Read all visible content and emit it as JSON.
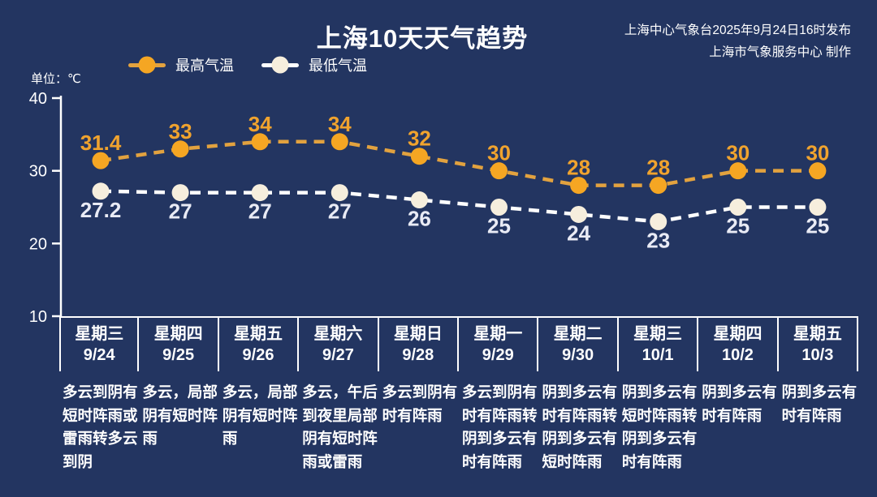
{
  "header": {
    "title": "上海10天天气趋势",
    "source_line1": "上海中心气象台2025年9月24日16时发布",
    "source_line2": "上海市气象服务中心 制作"
  },
  "unit_label": "单位：℃",
  "legend": {
    "high_label": "最高气温",
    "low_label": "最低气温"
  },
  "colors": {
    "background": "#233561",
    "axis": "#ffffff",
    "high_line": "#e2a23f",
    "high_marker": "#f5a623",
    "high_value_label": "#f0a32e",
    "low_line": "#ffffff",
    "low_marker": "#f6eedd",
    "low_value_label": "#e9ebf5",
    "text": "#ffffff"
  },
  "chart_data": {
    "type": "line",
    "title": "上海10天天气趋势",
    "ylabel": "单位：℃",
    "ylim": [
      10,
      40
    ],
    "yticks": [
      10,
      20,
      30,
      40
    ],
    "grid": false,
    "legend_position": "top-left",
    "line_style": "dashed",
    "categories": [
      "星期三 9/24",
      "星期四 9/25",
      "星期五 9/26",
      "星期六 9/27",
      "星期日 9/28",
      "星期一 9/29",
      "星期二 9/30",
      "星期三 10/1",
      "星期四 10/2",
      "星期五 10/3"
    ],
    "series": [
      {
        "name": "最高气温",
        "values": [
          31.4,
          33,
          34,
          34,
          32,
          30,
          28,
          28,
          30,
          30
        ],
        "label_side": "above"
      },
      {
        "name": "最低气温",
        "values": [
          27.2,
          27,
          27,
          27,
          26,
          25,
          24,
          23,
          25,
          25
        ],
        "label_side": "below"
      }
    ]
  },
  "days": [
    {
      "weekday": "星期三",
      "date": "9/24",
      "forecast": "多云到阴有短时阵雨或雷雨转多云到阴"
    },
    {
      "weekday": "星期四",
      "date": "9/25",
      "forecast": "多云，局部阴有短时阵雨"
    },
    {
      "weekday": "星期五",
      "date": "9/26",
      "forecast": "多云，局部阴有短时阵雨"
    },
    {
      "weekday": "星期六",
      "date": "9/27",
      "forecast": "多云，午后到夜里局部阴有短时阵雨或雷雨"
    },
    {
      "weekday": "星期日",
      "date": "9/28",
      "forecast": "多云到阴有时有阵雨"
    },
    {
      "weekday": "星期一",
      "date": "9/29",
      "forecast": "多云到阴有时有阵雨转阴到多云有时有阵雨"
    },
    {
      "weekday": "星期二",
      "date": "9/30",
      "forecast": "阴到多云有时有阵雨转阴到多云有短时阵雨"
    },
    {
      "weekday": "星期三",
      "date": "10/1",
      "forecast": "阴到多云有短时阵雨转阴到多云有时有阵雨"
    },
    {
      "weekday": "星期四",
      "date": "10/2",
      "forecast": "阴到多云有时有阵雨"
    },
    {
      "weekday": "星期五",
      "date": "10/3",
      "forecast": "阴到多云有时有阵雨"
    }
  ]
}
